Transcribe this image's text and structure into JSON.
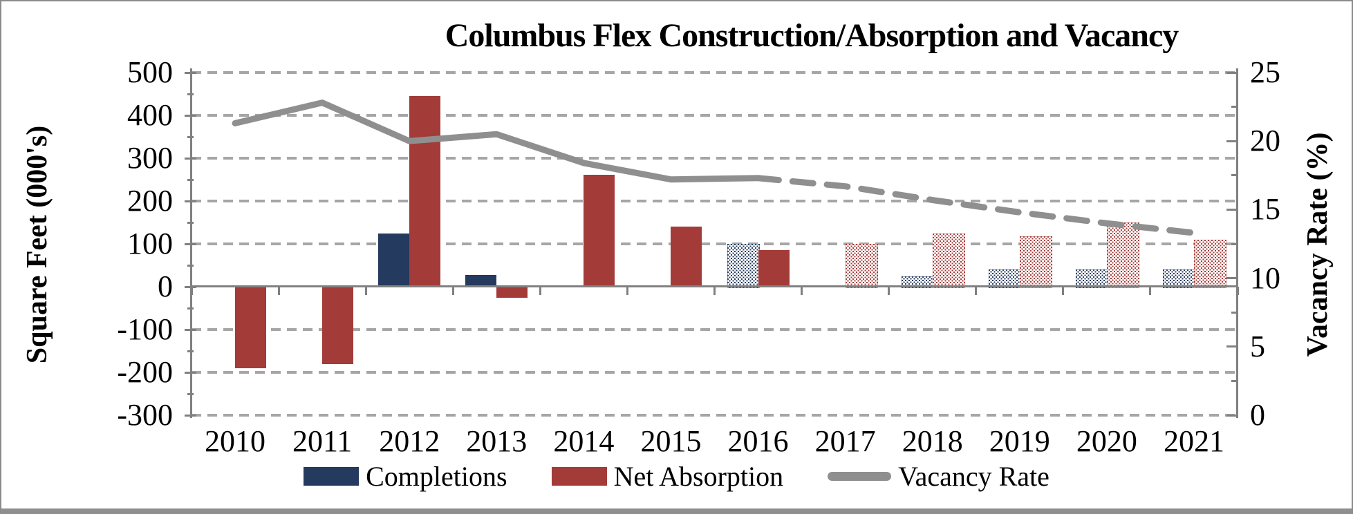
{
  "chart_data": {
    "type": "combo-bar-line",
    "title": "Columbus Flex Construction/Absorption and Vacancy",
    "categories": [
      "2010",
      "2011",
      "2012",
      "2013",
      "2014",
      "2015",
      "2016",
      "2017",
      "2018",
      "2019",
      "2020",
      "2021"
    ],
    "series": [
      {
        "name": "Completions",
        "type": "column",
        "axis": "left",
        "color": "#243A5E",
        "values": [
          0,
          0,
          125,
          28,
          0,
          0,
          100,
          0,
          25,
          40,
          40,
          40
        ],
        "patterned": [
          false,
          false,
          false,
          false,
          false,
          false,
          true,
          false,
          true,
          true,
          true,
          true
        ]
      },
      {
        "name": "Net Absorption",
        "type": "column",
        "axis": "left",
        "color": "#A33B38",
        "values": [
          -190,
          -180,
          445,
          -25,
          262,
          140,
          85,
          100,
          125,
          118,
          150,
          110
        ],
        "patterned": [
          false,
          false,
          false,
          false,
          false,
          false,
          false,
          true,
          true,
          true,
          true,
          true
        ]
      },
      {
        "name": "Vacancy Rate",
        "type": "line",
        "axis": "right",
        "color": "#8F8F8F",
        "values": [
          21.3,
          22.8,
          20.0,
          20.5,
          18.4,
          17.2,
          17.3,
          16.7,
          15.7,
          14.8,
          14.0,
          13.3
        ],
        "solid_through_index": 6
      }
    ],
    "left_axis": {
      "title": "Square Feet (000's)",
      "min": -300,
      "max": 500,
      "tick_step": 100,
      "ticks": [
        500,
        400,
        300,
        200,
        100,
        0,
        -100,
        -200,
        -300
      ]
    },
    "right_axis": {
      "title": "Vacancy Rate (%)",
      "min": 0,
      "max": 25,
      "tick_step": 5,
      "ticks": [
        25,
        20,
        15,
        10,
        5,
        0
      ]
    },
    "legend": [
      "Completions",
      "Net Absorption",
      "Vacancy Rate"
    ],
    "legend_position": "bottom",
    "gridline_style": "dashed",
    "colors": {
      "completions": "#243A5E",
      "net_absorption": "#A33B38",
      "vacancy_line": "#8F8F8F",
      "gridline": "#A6A6A6",
      "axis": "#808080",
      "frame_border": "#8A8A8A",
      "background": "#FFFFFF"
    }
  }
}
